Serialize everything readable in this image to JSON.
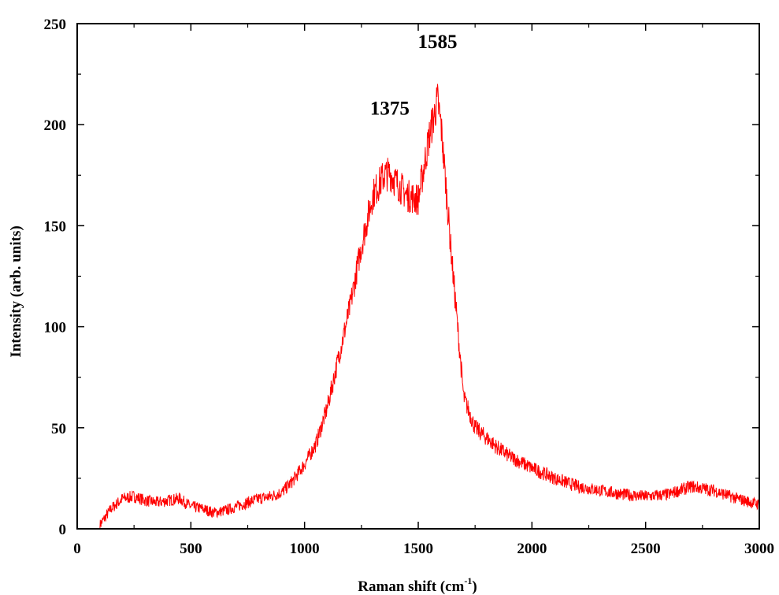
{
  "chart_data": {
    "type": "line",
    "title": "",
    "xlabel_main": "Raman shift (cm",
    "xlabel_sup": "-1",
    "xlabel_tail": ")",
    "ylabel": "Intensity (arb. units)",
    "xlim": [
      0,
      3000
    ],
    "ylim": [
      0,
      250
    ],
    "xticks": [
      "0",
      "500",
      "1000",
      "1500",
      "2000",
      "2500",
      "3000"
    ],
    "yticks": [
      "0",
      "50",
      "100",
      "150",
      "200",
      "250"
    ],
    "grid": false,
    "legend": "none",
    "line_color": "#ff0000",
    "annotations": [
      {
        "text": "1375",
        "x": 1375,
        "y": 205
      },
      {
        "text": "1585",
        "x": 1585,
        "y": 238
      }
    ],
    "series": [
      {
        "x": [
          100,
          150,
          200,
          250,
          300,
          350,
          400,
          450,
          500,
          550,
          600,
          650,
          700,
          750,
          800,
          850,
          900,
          950,
          1000,
          1050,
          1100,
          1150,
          1200,
          1250,
          1300,
          1350,
          1375,
          1400,
          1450,
          1500,
          1550,
          1585,
          1600,
          1650,
          1700,
          1750,
          1800,
          1850,
          1900,
          1950,
          2000,
          2100,
          2200,
          2300,
          2400,
          2500,
          2600,
          2700,
          2800,
          2900,
          3000
        ],
        "values": [
          2,
          10,
          15,
          16,
          14,
          13,
          14,
          15,
          11,
          10,
          8,
          9,
          11,
          13,
          15,
          16,
          18,
          24,
          32,
          42,
          60,
          85,
          110,
          140,
          165,
          175,
          176,
          172,
          165,
          163,
          195,
          212,
          200,
          130,
          65,
          50,
          45,
          40,
          36,
          33,
          30,
          25,
          21,
          19,
          17,
          16,
          17,
          21,
          19,
          15,
          12
        ]
      }
    ]
  }
}
